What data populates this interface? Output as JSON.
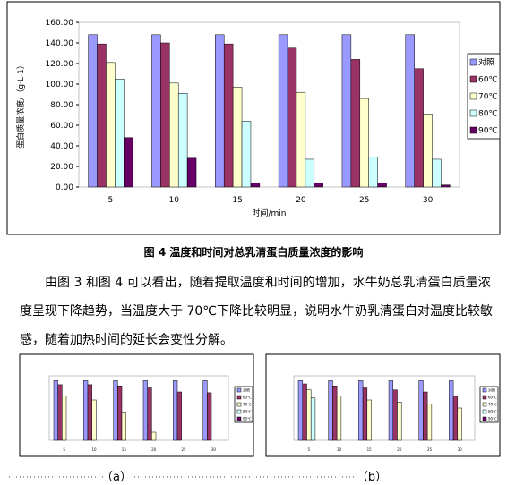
{
  "chart_data": [
    {
      "type": "bar",
      "x_label": "时间/min",
      "y_label": "蛋白质量浓度/（g·L-1）",
      "categories": [
        "5",
        "10",
        "15",
        "20",
        "25",
        "30"
      ],
      "series": [
        {
          "name": "对照",
          "color": "#9999ff",
          "values": [
            148,
            148,
            148,
            148,
            148,
            148
          ]
        },
        {
          "name": "60℃",
          "color": "#993366",
          "values": [
            139,
            140,
            139,
            135,
            124,
            115
          ]
        },
        {
          "name": "70℃",
          "color": "#ffffcc",
          "values": [
            121,
            101,
            97,
            92,
            86,
            71
          ]
        },
        {
          "name": "80℃",
          "color": "#ccffff",
          "values": [
            105,
            91,
            64,
            27,
            29,
            27
          ]
        },
        {
          "name": "90℃",
          "color": "#660066",
          "values": [
            48,
            28,
            4,
            4,
            4,
            2
          ]
        }
      ],
      "ylim": [
        0,
        160
      ],
      "yticks": [
        {
          "value": 0,
          "label": "0.00"
        },
        {
          "value": 20,
          "label": "20.00"
        },
        {
          "value": 40,
          "label": "40.00"
        },
        {
          "value": 60,
          "label": "60.00"
        },
        {
          "value": 80,
          "label": "80.00"
        },
        {
          "value": 100,
          "label": "100.00"
        },
        {
          "value": 120,
          "label": "120.00"
        },
        {
          "value": 140,
          "label": "140.00"
        },
        {
          "value": 160,
          "label": "160.00"
        }
      ]
    },
    {
      "type": "bar",
      "categories": [
        "5",
        "10",
        "15",
        "20",
        "25",
        "30"
      ],
      "series": [
        {
          "name": "对照",
          "color": "#9999ff",
          "values": [
            148,
            148,
            148,
            148,
            148,
            148
          ]
        },
        {
          "name": "60℃",
          "color": "#993366",
          "values": [
            138,
            138,
            135,
            130,
            120,
            118
          ]
        },
        {
          "name": "70℃",
          "color": "#ffffcc",
          "values": [
            110,
            100,
            70,
            20,
            null,
            null
          ]
        },
        {
          "name": "80℃",
          "color": "#ccffff",
          "values": [
            null,
            null,
            null,
            null,
            null,
            null
          ]
        },
        {
          "name": "90℃",
          "color": "#660066",
          "values": [
            null,
            null,
            null,
            null,
            null,
            null
          ]
        }
      ],
      "ylim": [
        0,
        160
      ]
    },
    {
      "type": "bar",
      "categories": [
        "5",
        "10",
        "15",
        "20",
        "25",
        "30"
      ],
      "series": [
        {
          "name": "对照",
          "color": "#9999ff",
          "values": [
            148,
            148,
            148,
            148,
            148,
            148
          ]
        },
        {
          "name": "60℃",
          "color": "#993366",
          "values": [
            140,
            135,
            130,
            125,
            120,
            110
          ]
        },
        {
          "name": "70℃",
          "color": "#ffffcc",
          "values": [
            125,
            110,
            100,
            95,
            90,
            80
          ]
        },
        {
          "name": "80℃",
          "color": "#ccffff",
          "values": [
            105,
            null,
            null,
            null,
            null,
            null
          ]
        },
        {
          "name": "90℃",
          "color": "#660066",
          "values": [
            null,
            null,
            null,
            null,
            null,
            null
          ]
        }
      ],
      "ylim": [
        0,
        160
      ]
    }
  ],
  "caption": "图 4  温度和时间对总乳清蛋白质量浓度的影响",
  "paragraph": "由图 3 和图 4 可以看出，随着提取温度和时间的增加，水牛奶总乳清蛋白质量浓度呈现下降趋势，当温度大于 70℃下降比较明显，说明水牛奶乳清蛋白对温度比较敏感，随着加热时间的延长会变性分解。",
  "sub_labels": [
    "（a）",
    "（b）"
  ]
}
